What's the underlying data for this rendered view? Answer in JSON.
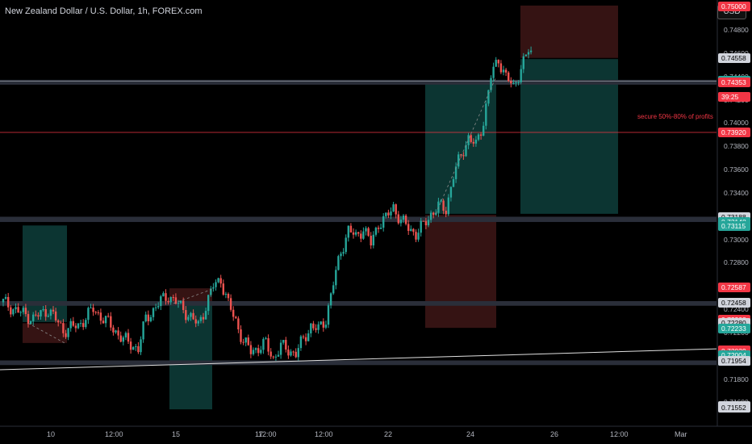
{
  "title": "New Zealand Dollar / U.S. Dollar, 1h, FOREX.com",
  "currency": "USD",
  "annotation": "secure 50%-80% of profits",
  "colors": {
    "up": "#26a69a",
    "down": "#ef5350",
    "zone": "#2a2e39",
    "target": "#0d3b37",
    "stop": "#3b1515"
  },
  "chart_data": {
    "type": "candlestick",
    "title": "New Zealand Dollar / U.S. Dollar, 1h, FOREX.com",
    "symbol": "NZDUSD",
    "ylim": [
      0.7145,
      0.7503
    ],
    "y_ticks": [
      "0.75000",
      "0.74800",
      "0.74600",
      "0.74400",
      "0.74200",
      "0.74000",
      "0.73800",
      "0.73600",
      "0.73400",
      "0.73200",
      "0.73000",
      "0.72800",
      "0.72600",
      "0.72400",
      "0.72200",
      "0.72000",
      "0.71800",
      "0.71600"
    ],
    "x_ticks": [
      "10",
      "12:00",
      "15",
      "12:00",
      "17",
      "12:00",
      "22",
      "24",
      "26",
      "12:00",
      "Mar"
    ],
    "price_path": [
      [
        0,
        0.7246
      ],
      [
        2,
        0.7238
      ],
      [
        4,
        0.7232
      ],
      [
        6,
        0.724
      ],
      [
        8,
        0.7222
      ],
      [
        10,
        0.7226
      ],
      [
        12,
        0.724
      ],
      [
        14,
        0.7228
      ],
      [
        16,
        0.7214
      ],
      [
        18,
        0.7206
      ],
      [
        19,
        0.7232
      ],
      [
        21,
        0.7247
      ],
      [
        22,
        0.7252
      ],
      [
        24,
        0.724
      ],
      [
        26,
        0.7226
      ],
      [
        28,
        0.726
      ],
      [
        29,
        0.7266
      ],
      [
        30,
        0.7244
      ],
      [
        31,
        0.723
      ],
      [
        32,
        0.7212
      ],
      [
        33,
        0.7204
      ],
      [
        35,
        0.721
      ],
      [
        36,
        0.7198
      ],
      [
        37,
        0.7208
      ],
      [
        39,
        0.7202
      ],
      [
        40,
        0.7214
      ],
      [
        41,
        0.7226
      ],
      [
        42,
        0.7222
      ],
      [
        43,
        0.7232
      ],
      [
        44,
        0.7262
      ],
      [
        45,
        0.729
      ],
      [
        46,
        0.7308
      ],
      [
        47,
        0.7302
      ],
      [
        48,
        0.731
      ],
      [
        49,
        0.7296
      ],
      [
        50,
        0.7314
      ],
      [
        51,
        0.7318
      ],
      [
        52,
        0.7328
      ],
      [
        53,
        0.7316
      ],
      [
        54,
        0.731
      ],
      [
        55,
        0.7305
      ],
      [
        56,
        0.7312
      ],
      [
        57,
        0.7322
      ],
      [
        58,
        0.7328
      ],
      [
        59,
        0.7326
      ],
      [
        60,
        0.7355
      ],
      [
        61,
        0.7372
      ],
      [
        62,
        0.7388
      ],
      [
        63,
        0.738
      ],
      [
        64,
        0.7402
      ],
      [
        65,
        0.744
      ],
      [
        66,
        0.7455
      ],
      [
        67,
        0.744
      ],
      [
        68,
        0.743
      ],
      [
        69,
        0.7448
      ],
      [
        70,
        0.7462
      ],
      [
        71,
        0.7455
      ],
      [
        72,
        0.744
      ]
    ],
    "horizontal_levels": [
      {
        "label": "0.74558",
        "kind": "line"
      },
      {
        "label": "0.74366",
        "kind": "zone"
      },
      {
        "label": "0.74353",
        "kind": "line"
      },
      {
        "label": "0.73920",
        "kind": "line"
      },
      {
        "label": "0.73188",
        "kind": "zone"
      },
      {
        "label": "0.73148",
        "kind": "line"
      },
      {
        "label": "0.73115",
        "kind": "line"
      },
      {
        "label": "0.72587",
        "kind": "line"
      },
      {
        "label": "0.72458",
        "kind": "zone"
      },
      {
        "label": "0.72308",
        "kind": "line"
      },
      {
        "label": "0.72280",
        "kind": "line"
      },
      {
        "label": "0.72233",
        "kind": "line"
      },
      {
        "label": "0.72046",
        "kind": "line"
      },
      {
        "label": "0.72039",
        "kind": "line"
      },
      {
        "label": "0.72004",
        "kind": "line"
      },
      {
        "label": "0.71954",
        "kind": "zone"
      },
      {
        "label": "0.71954",
        "kind": "line"
      },
      {
        "label": "0.71569",
        "kind": "line"
      }
    ],
    "price_labels": [
      {
        "text": "0.74558",
        "value": 0.74558,
        "style": "grey"
      },
      {
        "text": "0.74366",
        "value": 0.74366,
        "style": "green"
      },
      {
        "text": "0.74353",
        "value": 0.74353,
        "style": "red"
      },
      {
        "text": "39:25",
        "value": 0.74225,
        "style": "red"
      },
      {
        "text": "0.73920",
        "value": 0.7392,
        "style": "red"
      },
      {
        "text": "0.73188",
        "value": 0.73188,
        "style": "grey"
      },
      {
        "text": "0.73148",
        "value": 0.73148,
        "style": "green"
      },
      {
        "text": "0.73115",
        "value": 0.73115,
        "style": "green"
      },
      {
        "text": "0.72587",
        "value": 0.72587,
        "style": "red"
      },
      {
        "text": "0.72458",
        "value": 0.72458,
        "style": "grey"
      },
      {
        "text": "0.72308",
        "value": 0.72308,
        "style": "red"
      },
      {
        "text": "0.72280",
        "value": 0.7228,
        "style": "grey"
      },
      {
        "text": "0.72233",
        "value": 0.72233,
        "style": "green"
      },
      {
        "text": "0.72046",
        "value": 0.72046,
        "style": "red"
      },
      {
        "text": "0.72039",
        "value": 0.72039,
        "style": "red"
      },
      {
        "text": "0.72004",
        "value": 0.72004,
        "style": "green"
      },
      {
        "text": "0.71954",
        "value": 0.71954,
        "style": "green"
      },
      {
        "text": "0.71954",
        "value": 0.71954,
        "style": "grey"
      },
      {
        "text": "0.71569",
        "value": 0.71569,
        "style": "grey"
      },
      {
        "text": "0.71552",
        "value": 0.71552,
        "style": "grey"
      },
      {
        "text": "0.75000",
        "value": 0.75,
        "style": "red"
      }
    ],
    "grid": false
  }
}
